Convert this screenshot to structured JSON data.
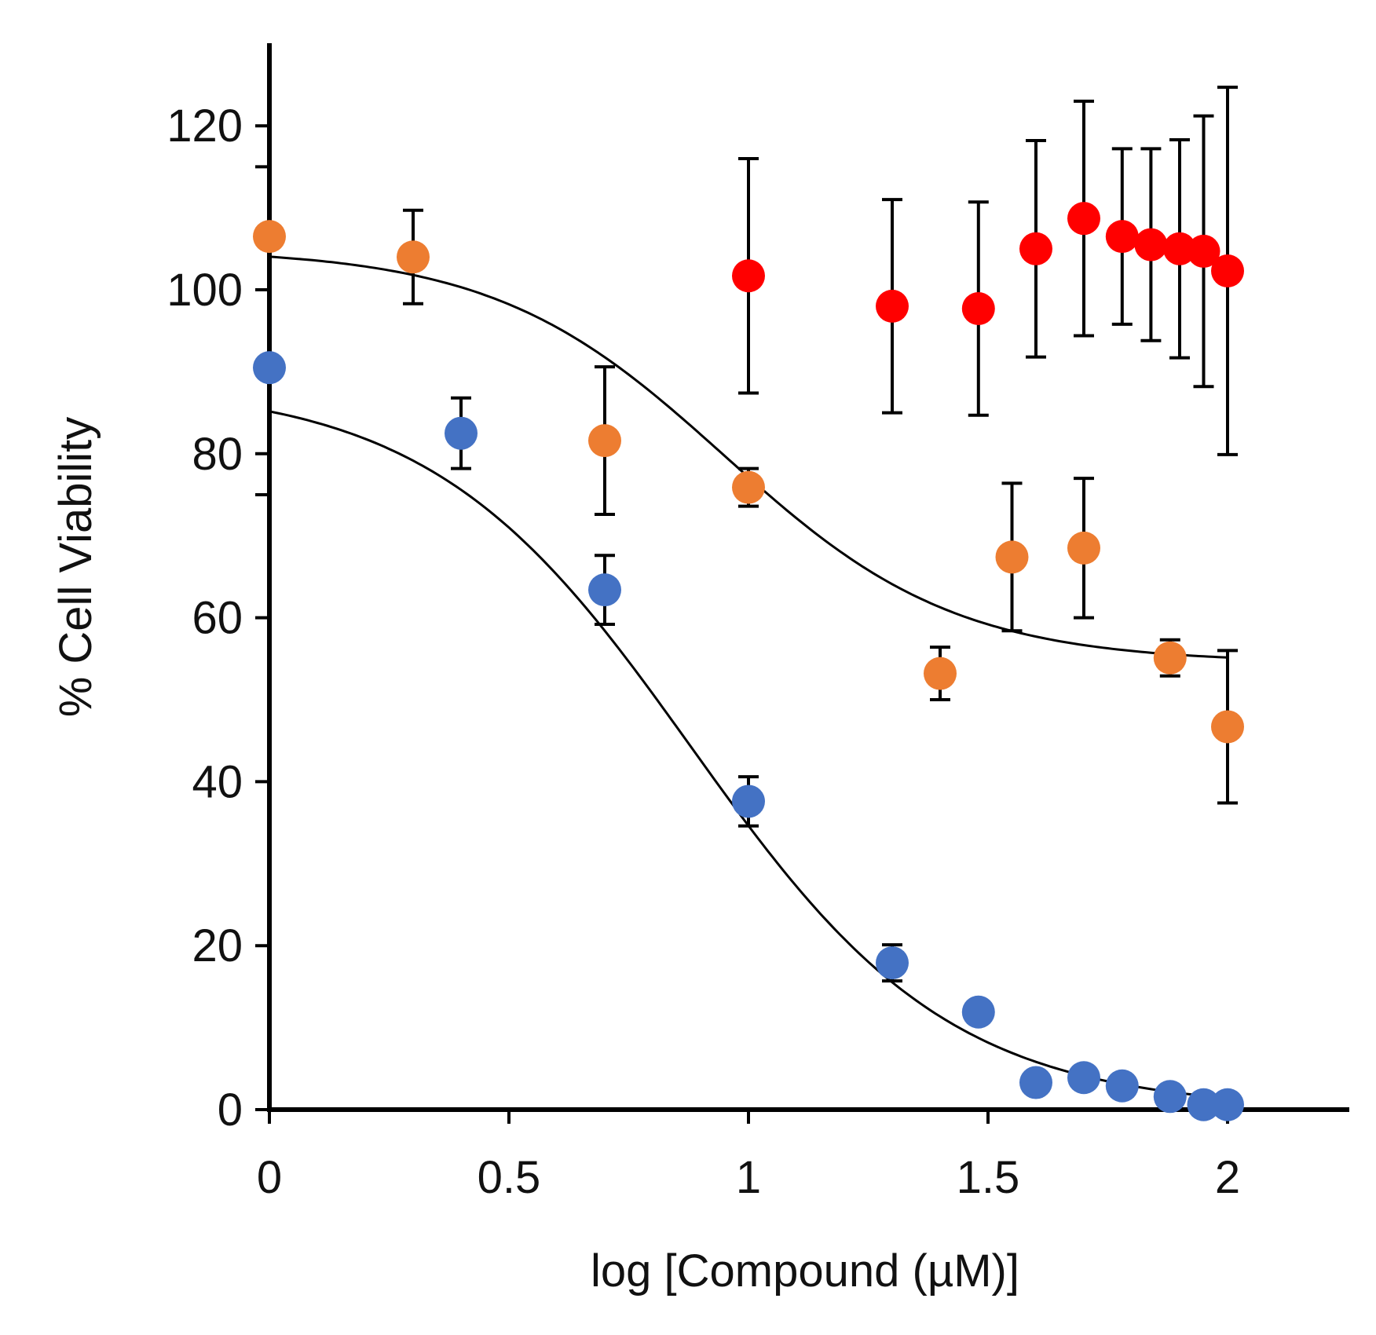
{
  "chart_data": {
    "type": "scatter",
    "title": "",
    "xlabel": "log [Compound (µM)]",
    "ylabel": "% Cell Viability",
    "xlim": [
      0,
      2.25
    ],
    "ylim": [
      0,
      130
    ],
    "x_ticks": [
      0,
      0.5,
      1,
      1.5,
      2
    ],
    "x_tick_labels": [
      "0",
      "0.5",
      "1",
      "1.5",
      "2"
    ],
    "y_ticks": [
      0,
      20,
      40,
      60,
      80,
      100,
      120
    ],
    "y_tick_labels": [
      "0",
      "20",
      "40",
      "60",
      "80",
      "100",
      "120"
    ],
    "y_minor_ticks": [
      75,
      115
    ],
    "grid": false,
    "colors": {
      "blue": "#4472c4",
      "orange": "#ed7d31",
      "red": "#ff0000"
    },
    "series": [
      {
        "name": "blue",
        "color": "#4472c4",
        "points": [
          {
            "x": 0,
            "y": 90.5
          },
          {
            "x": 0.4,
            "y": 82.5,
            "err": 4.3
          },
          {
            "x": 0.7,
            "y": 63.4,
            "err": 4.2
          },
          {
            "x": 1.0,
            "y": 37.6,
            "err": 3.0
          },
          {
            "x": 1.3,
            "y": 17.9,
            "err": 2.2
          },
          {
            "x": 1.48,
            "y": 11.9
          },
          {
            "x": 1.6,
            "y": 3.3
          },
          {
            "x": 1.7,
            "y": 3.9
          },
          {
            "x": 1.78,
            "y": 2.9
          },
          {
            "x": 1.88,
            "y": 1.6
          },
          {
            "x": 1.95,
            "y": 0.6
          },
          {
            "x": 2.0,
            "y": 0.6
          }
        ],
        "fit": {
          "top": 88.5,
          "bottom": 0,
          "logIC50": 0.88,
          "hill": 1.6
        }
      },
      {
        "name": "orange",
        "color": "#ed7d31",
        "points": [
          {
            "x": 0,
            "y": 106.5
          },
          {
            "x": 0.3,
            "y": 104.0,
            "err": 5.7
          },
          {
            "x": 0.7,
            "y": 81.6,
            "err": 9.0
          },
          {
            "x": 1.0,
            "y": 75.9,
            "err": 2.3
          },
          {
            "x": 1.4,
            "y": 53.2,
            "err": 3.2
          },
          {
            "x": 1.55,
            "y": 67.4,
            "err": 9.0
          },
          {
            "x": 1.7,
            "y": 68.5,
            "err": 8.5
          },
          {
            "x": 1.88,
            "y": 55.1,
            "err": 2.2
          },
          {
            "x": 2.0,
            "y": 46.7,
            "err": 9.3
          }
        ],
        "fit": {
          "top": 105,
          "bottom": 54.5,
          "logIC50": 0.95,
          "hill": 1.8
        }
      },
      {
        "name": "red",
        "color": "#ff0000",
        "points": [
          {
            "x": 1.0,
            "y": 101.7,
            "err": 14.3
          },
          {
            "x": 1.3,
            "y": 98.0,
            "err": 13.0
          },
          {
            "x": 1.48,
            "y": 97.7,
            "err": 13.0
          },
          {
            "x": 1.6,
            "y": 105.0,
            "err": 13.2
          },
          {
            "x": 1.7,
            "y": 108.7,
            "err": 14.3
          },
          {
            "x": 1.78,
            "y": 106.5,
            "err": 10.7
          },
          {
            "x": 1.84,
            "y": 105.5,
            "err": 11.7
          },
          {
            "x": 1.9,
            "y": 105.0,
            "err": 13.3
          },
          {
            "x": 1.95,
            "y": 104.7,
            "err": 16.5
          },
          {
            "x": 2.0,
            "y": 102.3,
            "err": 22.4
          }
        ]
      }
    ]
  }
}
